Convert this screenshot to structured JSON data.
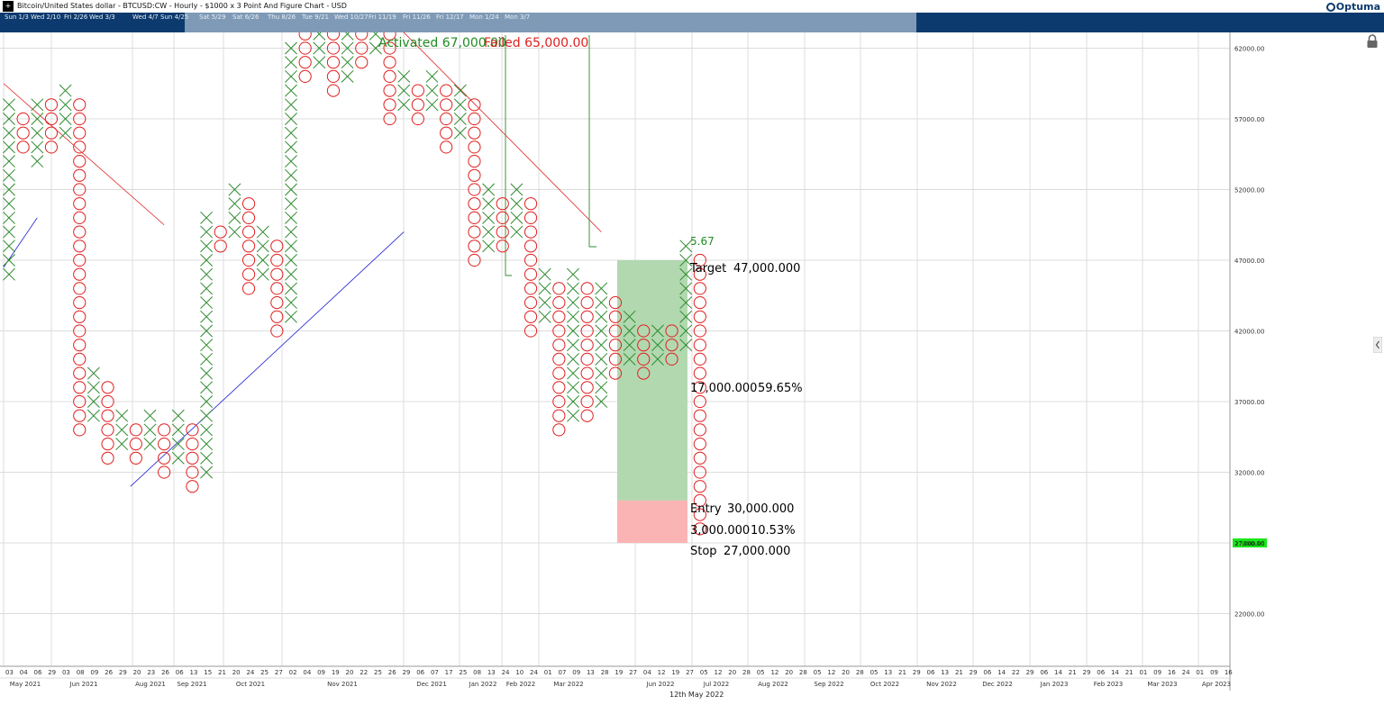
{
  "window": {
    "title": "Bitcoin/United States dollar - BTCUSD:CW - Hourly - $1000 x 3 Point And Figure Chart - USD",
    "brand": "Optuma"
  },
  "navigator": {
    "labels": [
      "Sun 1/3",
      "Wed 2/10",
      "Fri 2/26",
      "Wed 3/3",
      "Wed 4/7",
      "Sun 4/25",
      "Sat 5/29",
      "Sat 6/26",
      "Thu 8/26",
      "Tue 9/21",
      "Wed 10/27",
      "Fri 11/19",
      "Fri 11/26",
      "Fri 12/17",
      "Mon 1/24",
      "Mon 3/7"
    ]
  },
  "footer": {
    "date": "12th May 2022"
  },
  "colors": {
    "x_mark": "#2e8b2e",
    "o_mark": "#e02020",
    "target_zone": "#b2d8b0",
    "stop_zone": "#fbb4b4",
    "resistance_line": "#e02020",
    "support_line": "#2020d0",
    "signal_line": "#2e8b2e",
    "price_marker": "#19e619",
    "navigator_dark": "#0d3a6e",
    "navigator_window": "#7f9ab6"
  },
  "icons": [
    "lock-icon",
    "collapse-arrow-icon",
    "app-icon"
  ],
  "chart_data": {
    "type": "point-and-figure",
    "box_size": 1000,
    "reversal": 3,
    "y_ticks": [
      62000,
      57000,
      52000,
      47000,
      42000,
      37000,
      32000,
      27000,
      22000
    ],
    "y_tick_labels": [
      "62000.00",
      "57000.00",
      "52000.00",
      "47000.00",
      "42000.00",
      "37000.00",
      "32000.00",
      "27000.00",
      "22000.00"
    ],
    "ylim": [
      18000,
      63000
    ],
    "columns": [
      {
        "type": "X",
        "low": 46000,
        "high": 58000
      },
      {
        "type": "O",
        "low": 55000,
        "high": 57000
      },
      {
        "type": "X",
        "low": 54000,
        "high": 58000
      },
      {
        "type": "O",
        "low": 55000,
        "high": 58000
      },
      {
        "type": "X",
        "low": 56000,
        "high": 59000
      },
      {
        "type": "O",
        "low": 35000,
        "high": 58000
      },
      {
        "type": "X",
        "low": 36000,
        "high": 39000
      },
      {
        "type": "O",
        "low": 33000,
        "high": 38000
      },
      {
        "type": "X",
        "low": 34000,
        "high": 36000
      },
      {
        "type": "O",
        "low": 33000,
        "high": 35000
      },
      {
        "type": "X",
        "low": 34000,
        "high": 36000
      },
      {
        "type": "O",
        "low": 32000,
        "high": 35000
      },
      {
        "type": "X",
        "low": 33000,
        "high": 36000
      },
      {
        "type": "O",
        "low": 31000,
        "high": 35000
      },
      {
        "type": "X",
        "low": 32000,
        "high": 50000
      },
      {
        "type": "O",
        "low": 48000,
        "high": 49000
      },
      {
        "type": "X",
        "low": 49000,
        "high": 52000
      },
      {
        "type": "O",
        "low": 45000,
        "high": 51000
      },
      {
        "type": "X",
        "low": 46000,
        "high": 49000
      },
      {
        "type": "O",
        "low": 42000,
        "high": 48000
      },
      {
        "type": "X",
        "low": 43000,
        "high": 62000
      },
      {
        "type": "O",
        "low": 60000,
        "high": 63000
      },
      {
        "type": "X",
        "low": 61000,
        "high": 63000
      },
      {
        "type": "O",
        "low": 59000,
        "high": 63000
      },
      {
        "type": "X",
        "low": 60000,
        "high": 63000
      },
      {
        "type": "O",
        "low": 61000,
        "high": 63000
      },
      {
        "type": "X",
        "low": 62000,
        "high": 63000
      },
      {
        "type": "O",
        "low": 57000,
        "high": 63000
      },
      {
        "type": "X",
        "low": 58000,
        "high": 60000
      },
      {
        "type": "O",
        "low": 57000,
        "high": 59000
      },
      {
        "type": "X",
        "low": 58000,
        "high": 60000
      },
      {
        "type": "O",
        "low": 55000,
        "high": 59000
      },
      {
        "type": "X",
        "low": 56000,
        "high": 59000
      },
      {
        "type": "O",
        "low": 47000,
        "high": 58000
      },
      {
        "type": "X",
        "low": 48000,
        "high": 52000
      },
      {
        "type": "O",
        "low": 48000,
        "high": 51000
      },
      {
        "type": "X",
        "low": 49000,
        "high": 52000
      },
      {
        "type": "O",
        "low": 42000,
        "high": 51000
      },
      {
        "type": "X",
        "low": 43000,
        "high": 46000
      },
      {
        "type": "O",
        "low": 35000,
        "high": 45000
      },
      {
        "type": "X",
        "low": 36000,
        "high": 46000
      },
      {
        "type": "O",
        "low": 36000,
        "high": 45000
      },
      {
        "type": "X",
        "low": 37000,
        "high": 45000
      },
      {
        "type": "O",
        "low": 39000,
        "high": 44000
      },
      {
        "type": "X",
        "low": 40000,
        "high": 43000
      },
      {
        "type": "O",
        "low": 39000,
        "high": 42000
      },
      {
        "type": "X",
        "low": 40000,
        "high": 42000
      },
      {
        "type": "O",
        "low": 40000,
        "high": 42000
      },
      {
        "type": "X",
        "low": 41000,
        "high": 48000
      },
      {
        "type": "O",
        "low": 28000,
        "high": 47000
      }
    ],
    "x_ticks": {
      "days": [
        "03",
        "04",
        "06",
        "29",
        "03",
        "08",
        "09",
        "26",
        "29",
        "20",
        "23",
        "26",
        "06",
        "13",
        "15",
        "21",
        "20",
        "24",
        "25",
        "27",
        "02",
        "04",
        "09",
        "19",
        "20",
        "22",
        "25",
        "26",
        "29",
        "06",
        "07",
        "17",
        "25",
        "08",
        "13",
        "24",
        "10",
        "24",
        "01",
        "07",
        "09",
        "13",
        "28",
        "19",
        "27",
        "04",
        "12",
        "19",
        "27",
        "05",
        "12",
        "20",
        "28",
        "05",
        "12",
        "20",
        "28",
        "05",
        "12",
        "20",
        "28",
        "05",
        "13",
        "21",
        "29",
        "06",
        "13",
        "21",
        "29",
        "06",
        "14",
        "22",
        "29",
        "06",
        "14",
        "21",
        "29",
        "06",
        "14",
        "21",
        "01",
        "09",
        "16",
        "24",
        "01",
        "09",
        "16"
      ],
      "months": [
        "May 2021",
        "Jun 2021",
        "Aug 2021",
        "Sep 2021",
        "Oct 2021",
        "Nov 2021",
        "Dec 2021",
        "Jan 2022",
        "Feb 2022",
        "Mar 2022",
        "Jun 2022",
        "Jul 2022",
        "Aug 2022",
        "Sep 2022",
        "Oct 2022",
        "Nov 2022",
        "Dec 2022",
        "Jan 2023",
        "Feb 2023",
        "Mar 2023",
        "Apr 2023"
      ]
    },
    "annotations": {
      "activated_label": "Activated 67,000.00",
      "failed_label": "Failed 65,000.00",
      "ratio": "5.67",
      "target_label": "Target",
      "target_value": "47,000.000",
      "gain_amount": "17,000.000",
      "gain_pct": "59.65%",
      "entry_label": "Entry",
      "entry_value": "30,000.000",
      "risk_amount": "3,000.000",
      "risk_pct": "10.53%",
      "stop_label": "Stop",
      "stop_value": "27,000.000",
      "last_price": "27,000.00"
    },
    "levels": {
      "target": 47000,
      "entry": 30000,
      "stop": 27000,
      "last_price": 27000,
      "activated": 67000,
      "failed": 65000
    },
    "trendlines": {
      "resistance_1": [
        [
          0,
          59500
        ],
        [
          11,
          49500
        ]
      ],
      "resistance_2": [
        [
          28,
          63500
        ],
        [
          42,
          49000
        ]
      ],
      "support_1": [
        [
          0,
          46500
        ],
        [
          2,
          50000
        ]
      ],
      "support_2": [
        [
          9,
          31000
        ],
        [
          28,
          49000
        ]
      ]
    }
  }
}
